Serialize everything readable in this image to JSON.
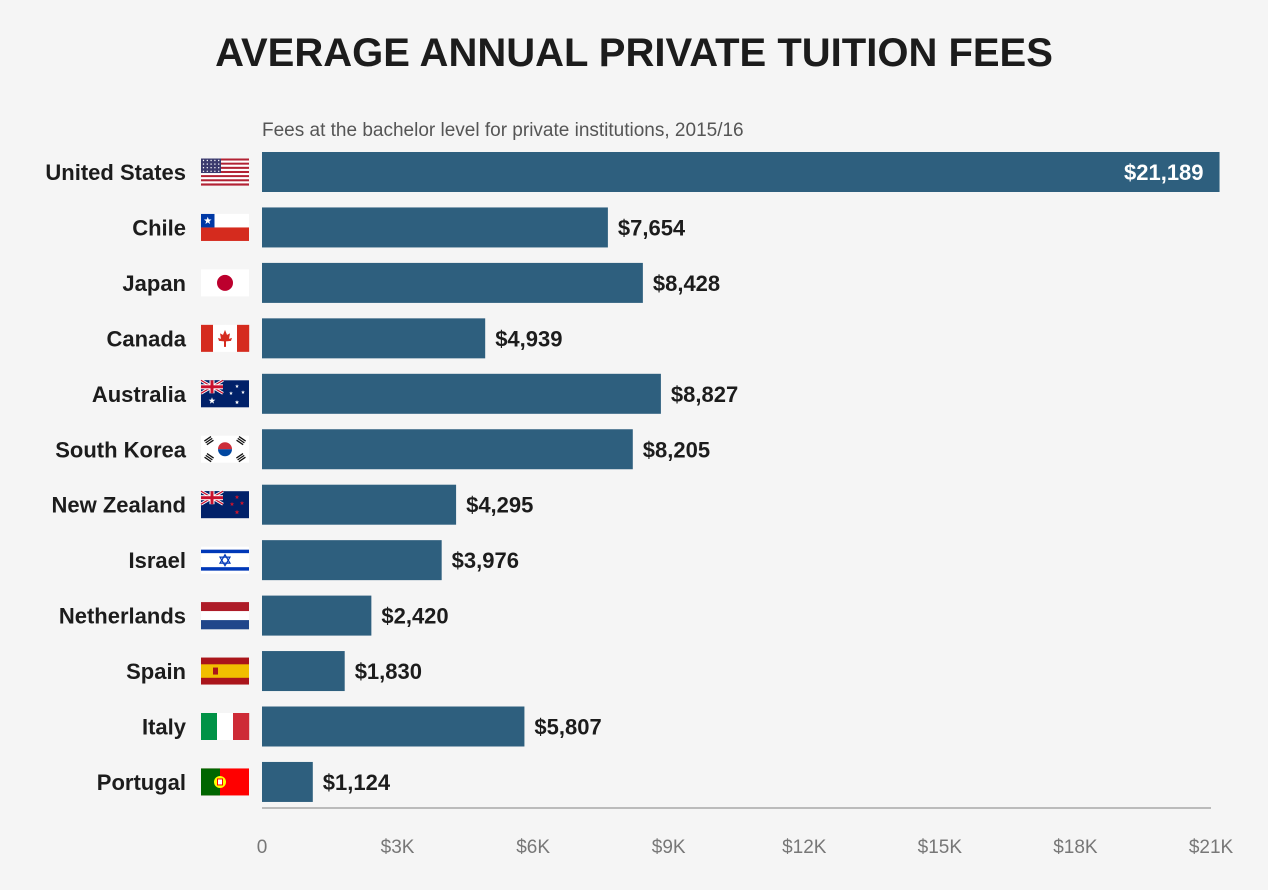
{
  "chart_data": {
    "type": "bar",
    "orientation": "horizontal",
    "title": "AVERAGE ANNUAL PRIVATE TUITION FEES",
    "subtitle": "Fees at the bachelor level for private institutions, 2015/16",
    "xlabel": "",
    "ylabel": "",
    "xlim": [
      0,
      21000
    ],
    "grid": false,
    "tick_values": [
      0,
      3000,
      6000,
      9000,
      12000,
      15000,
      18000,
      21000
    ],
    "tick_labels": [
      "0",
      "$3K",
      "$6K",
      "$9K",
      "$12K",
      "$15K",
      "$18K",
      "$21K"
    ],
    "categories": [
      "United States",
      "Chile",
      "Japan",
      "Canada",
      "Australia",
      "South Korea",
      "New Zealand",
      "Israel",
      "Netherlands",
      "Spain",
      "Italy",
      "Portugal"
    ],
    "flags": [
      "us-flag-icon",
      "chile-flag-icon",
      "japan-flag-icon",
      "canada-flag-icon",
      "australia-flag-icon",
      "south-korea-flag-icon",
      "new-zealand-flag-icon",
      "israel-flag-icon",
      "netherlands-flag-icon",
      "spain-flag-icon",
      "italy-flag-icon",
      "portugal-flag-icon"
    ],
    "values": [
      21189,
      7654,
      8428,
      4939,
      8827,
      8205,
      4295,
      3976,
      2420,
      1830,
      5807,
      1124
    ],
    "value_labels": [
      "$21,189",
      "$7,654",
      "$8,428",
      "$4,939",
      "$8,827",
      "$8,205",
      "$4,295",
      "$3,976",
      "$2,420",
      "$1,830",
      "$5,807",
      "$1,124"
    ],
    "colors": {
      "bar": "#2e5f7e",
      "axis": "#bbbbbb",
      "background": "#f5f5f5"
    }
  }
}
